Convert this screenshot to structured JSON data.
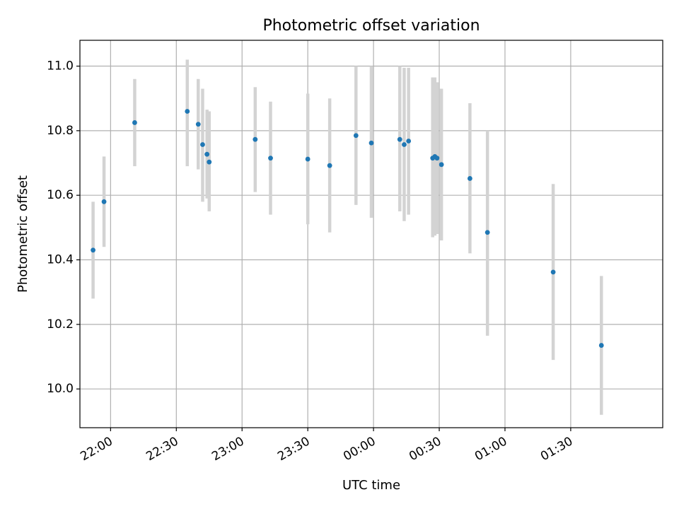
{
  "chart_data": {
    "type": "scatter",
    "title": "Photometric offset variation",
    "xlabel": "UTC time",
    "ylabel": "Photometric offset",
    "x_axis_type": "time",
    "x_start_time": "21:30",
    "xlim": [
      "21:46",
      "02:12"
    ],
    "ylim": [
      9.88,
      11.08
    ],
    "grid": true,
    "xticks": [
      "22:00",
      "22:30",
      "23:00",
      "23:30",
      "00:00",
      "00:30",
      "01:00",
      "01:30"
    ],
    "yticks": [
      "10.0",
      "10.2",
      "10.4",
      "10.6",
      "10.8",
      "11.0"
    ],
    "marker_color": "#1f77b4",
    "errorbar_color": "#d3d3d3",
    "points": [
      {
        "x": "21:52",
        "y": 10.43,
        "ylow": 10.28,
        "yhigh": 10.58
      },
      {
        "x": "21:57",
        "y": 10.58,
        "ylow": 10.44,
        "yhigh": 10.72
      },
      {
        "x": "22:11",
        "y": 10.825,
        "ylow": 10.69,
        "yhigh": 10.96
      },
      {
        "x": "22:35",
        "y": 10.86,
        "ylow": 10.69,
        "yhigh": 11.02
      },
      {
        "x": "22:40",
        "y": 10.82,
        "ylow": 10.68,
        "yhigh": 10.96
      },
      {
        "x": "22:42",
        "y": 10.757,
        "ylow": 10.58,
        "yhigh": 10.93
      },
      {
        "x": "22:44",
        "y": 10.727,
        "ylow": 10.59,
        "yhigh": 10.865
      },
      {
        "x": "22:45",
        "y": 10.703,
        "ylow": 10.55,
        "yhigh": 10.86
      },
      {
        "x": "23:06",
        "y": 10.773,
        "ylow": 10.61,
        "yhigh": 10.935
      },
      {
        "x": "23:13",
        "y": 10.715,
        "ylow": 10.54,
        "yhigh": 10.89
      },
      {
        "x": "23:30",
        "y": 10.712,
        "ylow": 10.51,
        "yhigh": 10.915
      },
      {
        "x": "23:40",
        "y": 10.692,
        "ylow": 10.485,
        "yhigh": 10.9
      },
      {
        "x": "23:52",
        "y": 10.785,
        "ylow": 10.57,
        "yhigh": 11.0
      },
      {
        "x": "23:59",
        "y": 10.762,
        "ylow": 10.53,
        "yhigh": 11.0
      },
      {
        "x": "00:12",
        "y": 10.773,
        "ylow": 10.55,
        "yhigh": 11.0
      },
      {
        "x": "00:14",
        "y": 10.757,
        "ylow": 10.52,
        "yhigh": 10.995
      },
      {
        "x": "00:16",
        "y": 10.768,
        "ylow": 10.54,
        "yhigh": 10.995
      },
      {
        "x": "00:27",
        "y": 10.715,
        "ylow": 10.47,
        "yhigh": 10.965
      },
      {
        "x": "00:28",
        "y": 10.72,
        "ylow": 10.475,
        "yhigh": 10.965
      },
      {
        "x": "00:29",
        "y": 10.715,
        "ylow": 10.48,
        "yhigh": 10.95
      },
      {
        "x": "00:31",
        "y": 10.695,
        "ylow": 10.46,
        "yhigh": 10.93
      },
      {
        "x": "00:44",
        "y": 10.652,
        "ylow": 10.42,
        "yhigh": 10.885
      },
      {
        "x": "00:52",
        "y": 10.485,
        "ylow": 10.165,
        "yhigh": 10.8
      },
      {
        "x": "01:22",
        "y": 10.362,
        "ylow": 10.09,
        "yhigh": 10.635
      },
      {
        "x": "01:44",
        "y": 10.135,
        "ylow": 9.92,
        "yhigh": 10.35
      }
    ]
  }
}
